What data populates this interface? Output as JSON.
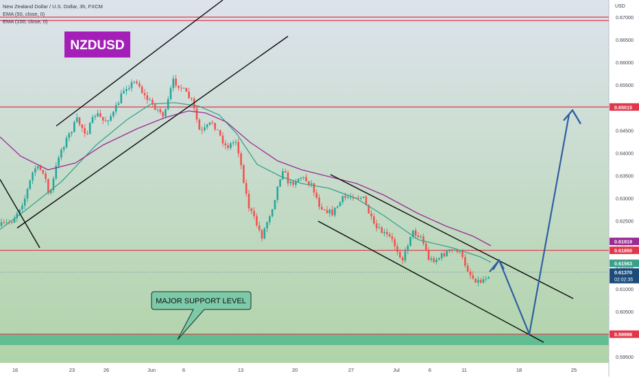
{
  "header": {
    "symbol_line": "New Zealand Dollar / U.S. Dollar, 3h, FXCM",
    "indicators": [
      "EMA (50, close, 0)",
      "EMA (100, close, 0)"
    ]
  },
  "title_badge": "NZDUSD",
  "callout": "MAJOR SUPPORT LEVEL",
  "currency": "USD",
  "colors": {
    "bg_top": "#dde3ec",
    "bg_bottom": "#aed3a6",
    "support_zone": "#62bd92",
    "badge": "#a31fb8",
    "level_line": "#e0374a",
    "ema50": "#3aa08a",
    "ema100": "#9b2c93",
    "projection": "#2f5fa0",
    "bull": "#26a69a",
    "bear": "#ef5350"
  },
  "price_axis": {
    "ticks": [
      "0.67000",
      "0.66500",
      "0.66000",
      "0.65500",
      "0.65000",
      "0.64500",
      "0.64000",
      "0.63500",
      "0.63000",
      "0.62500",
      "0.62000",
      "0.61500",
      "0.61000",
      "0.60500",
      "0.60000",
      "0.59500"
    ],
    "tags": [
      {
        "label": "0.65015",
        "kind": "level"
      },
      {
        "label": "0.61919",
        "kind": "ema100"
      },
      {
        "label": "0.61850",
        "kind": "level"
      },
      {
        "label": "0.61563",
        "kind": "ema50"
      },
      {
        "label": "0.61370",
        "kind": "last"
      },
      {
        "label": "0.59998",
        "kind": "level"
      }
    ],
    "countdown": "02:02:35"
  },
  "time_axis": [
    "16",
    "23",
    "26",
    "Jun",
    "6",
    "13",
    "20",
    "27",
    "Jul",
    "6",
    "11",
    "18",
    "25"
  ],
  "chart_data": {
    "type": "line",
    "title": "New Zealand Dollar / U.S. Dollar, 3h, FXCM",
    "xlabel": "",
    "ylabel": "USD",
    "ylim": [
      0.595,
      0.672
    ],
    "grid": false,
    "x_ticks": [
      "16",
      "23",
      "26",
      "Jun",
      "6",
      "13",
      "20",
      "27",
      "Jul",
      "6",
      "11",
      "18",
      "25"
    ],
    "x_range_days": [
      "May 13",
      "Jul 25"
    ],
    "series": [
      {
        "name": "EMA (50, close, 0)",
        "x": [
          "May 13",
          "May 17",
          "May 21",
          "May 25",
          "May 29",
          "Jun 2",
          "Jun 6",
          "Jun 9",
          "Jun 13",
          "Jun 17",
          "Jun 20",
          "Jun 23",
          "Jun 27",
          "Jul 1",
          "Jul 5",
          "Jul 8",
          "Jul 12",
          "Jul 13"
        ],
        "values": [
          0.621,
          0.6275,
          0.6335,
          0.641,
          0.6485,
          0.6515,
          0.65,
          0.6482,
          0.6445,
          0.64,
          0.6365,
          0.634,
          0.632,
          0.6275,
          0.624,
          0.6195,
          0.616,
          0.6156
        ]
      },
      {
        "name": "EMA (100, close, 0)",
        "x": [
          "May 13",
          "May 17",
          "May 21",
          "May 25",
          "May 29",
          "Jun 2",
          "Jun 6",
          "Jun 9",
          "Jun 13",
          "Jun 17",
          "Jun 20",
          "Jun 23",
          "Jun 27",
          "Jul 1",
          "Jul 5",
          "Jul 8",
          "Jul 12",
          "Jul 15"
        ],
        "values": [
          0.644,
          0.6385,
          0.6375,
          0.641,
          0.6435,
          0.6462,
          0.649,
          0.6505,
          0.6485,
          0.6435,
          0.64,
          0.6375,
          0.6345,
          0.631,
          0.6272,
          0.6235,
          0.6205,
          0.6192
        ]
      }
    ],
    "levels": [
      0.67,
      0.65015,
      0.6185,
      0.59998
    ],
    "last_price": 0.6137,
    "ema50_value": 0.61563,
    "ema100_value": 0.61919,
    "projection_path": [
      {
        "x": "Jul 15",
        "y": 0.616
      },
      {
        "x": "Jul 20",
        "y": 0.6
      },
      {
        "x": "Jul 22.5",
        "y": 0.647
      }
    ],
    "annotations": [
      "NZDUSD",
      "MAJOR SUPPORT LEVEL"
    ]
  }
}
